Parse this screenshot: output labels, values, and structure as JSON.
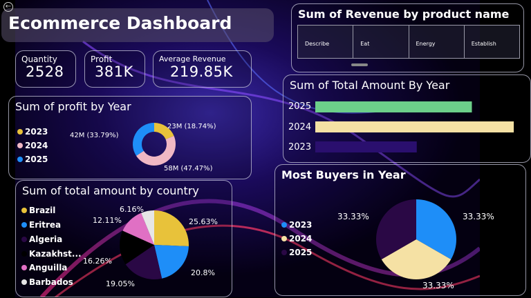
{
  "header": {
    "title": "Ecommerce Dashboard",
    "back_icon": "back-arrow-icon"
  },
  "cards": [
    {
      "label": "Quantity",
      "value": "2528"
    },
    {
      "label": "Profit",
      "value": "381K"
    },
    {
      "label": "Average Revenue",
      "value": "219.85K"
    }
  ],
  "colors": {
    "yellow": "#e8c23a",
    "pink": "#f0b8c4",
    "blue": "#1e8ef8",
    "green": "#6ccf8a",
    "cream": "#f5e1a4",
    "navy": "#2a0f6e",
    "dark_purple": "#2a0845",
    "black": "#000000",
    "magenta": "#e070c4",
    "white": "#e6e6e6"
  },
  "chart_data": [
    {
      "type": "pie",
      "title": "Sum of profit by Year",
      "categories": [
        "2023",
        "2024",
        "2025"
      ],
      "values": [
        23,
        58,
        42
      ],
      "labels": [
        "23M (18.74%)",
        "58M (47.47%)",
        "42M (33.79%)"
      ],
      "colors": [
        "#e8c23a",
        "#f0b8c4",
        "#1e8ef8"
      ],
      "donut": true,
      "legend": "left"
    },
    {
      "type": "table",
      "title": "Sum of Revenue by product name",
      "columns": [
        "Describe",
        "Eat",
        "Energy",
        "Establish"
      ]
    },
    {
      "type": "bar",
      "title": "Sum of Total Amount By Year",
      "categories": [
        "2025",
        "2024",
        "2023"
      ],
      "values": [
        0.71,
        0.9,
        0.46
      ],
      "colors": [
        "#6ccf8a",
        "#f5e1a4",
        "#2a0f6e"
      ],
      "orientation": "horizontal"
    },
    {
      "type": "pie",
      "title": "Sum of total amount by country",
      "categories": [
        "Brazil",
        "Eritrea",
        "Algeria",
        "Kazakhst...",
        "Anguilla",
        "Barbados"
      ],
      "values": [
        25.63,
        20.8,
        19.05,
        16.26,
        12.11,
        6.16
      ],
      "labels": [
        "25.63%",
        "20.8%",
        "19.05%",
        "16.26%",
        "12.11%",
        "6.16%"
      ],
      "colors": [
        "#e8c23a",
        "#1e8ef8",
        "#2a0845",
        "#000000",
        "#e070c4",
        "#e6e6e6"
      ],
      "legend": "left"
    },
    {
      "type": "pie",
      "title": "Most Buyers in Year",
      "categories": [
        "2023",
        "2024",
        "2025"
      ],
      "values": [
        33.33,
        33.33,
        33.33
      ],
      "labels": [
        "33.33%",
        "33.33%",
        "33.33%"
      ],
      "colors": [
        "#1e8ef8",
        "#f5e1a4",
        "#2a0845"
      ],
      "legend": "left"
    }
  ]
}
